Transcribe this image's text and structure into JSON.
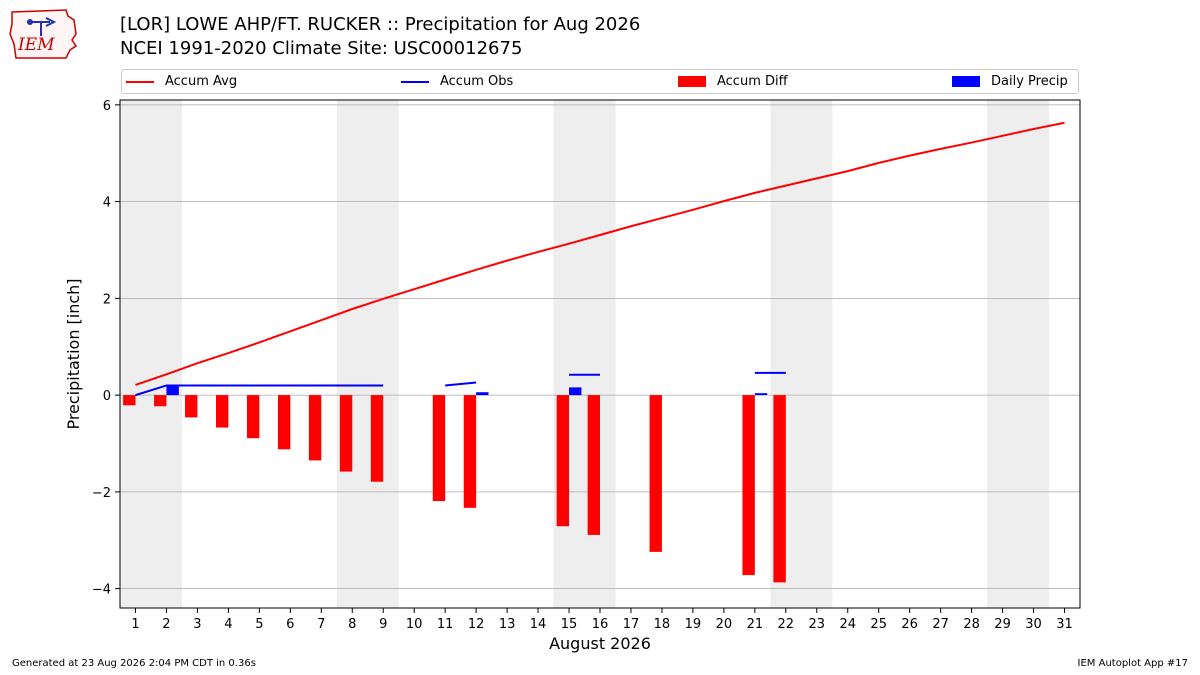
{
  "title_line1": "[LOR] LOWE AHP/FT. RUCKER :: Precipitation for Aug 2026",
  "title_line2": "NCEI 1991-2020 Climate Site: USC00012675",
  "logo_text": "IEM",
  "footer_left": "Generated at 23 Aug 2026 2:04 PM CDT in 0.36s",
  "footer_right": "IEM Autoplot App #17",
  "colors": {
    "avg": "#ff0000",
    "obs": "#0000ff",
    "diff": "#ff0000",
    "daily": "#0000ff",
    "weekend": "#eeeeee",
    "grid": "#aaaaaa"
  },
  "chart_data": {
    "type": "bar",
    "xlabel": "August 2026",
    "ylabel": "Precipitation [inch]",
    "xlim": [
      0.5,
      31.5
    ],
    "ylim": [
      -4.4,
      6.1
    ],
    "x_ticks": [
      1,
      2,
      3,
      4,
      5,
      6,
      7,
      8,
      9,
      10,
      11,
      12,
      13,
      14,
      15,
      16,
      17,
      18,
      19,
      20,
      21,
      22,
      23,
      24,
      25,
      26,
      27,
      28,
      29,
      30,
      31
    ],
    "x_tick_labels": [
      "1",
      "2",
      "3",
      "4",
      "5",
      "6",
      "7",
      "8",
      "9",
      "10",
      "11",
      "12",
      "13",
      "14",
      "15",
      "16",
      "17",
      "18",
      "19",
      "20",
      "21",
      "22",
      "23",
      "24",
      "25",
      "26",
      "27",
      "28",
      "29",
      "30",
      "31"
    ],
    "y_ticks": [
      -4,
      -2,
      0,
      2,
      4,
      6
    ],
    "y_tick_labels": [
      "−4",
      "−2",
      "0",
      "2",
      "4",
      "6"
    ],
    "grid": "horizontal",
    "weekend_shading": [
      [
        0.5,
        2.5
      ],
      [
        7.5,
        9.5
      ],
      [
        14.5,
        16.5
      ],
      [
        21.5,
        23.5
      ],
      [
        28.5,
        30.5
      ]
    ],
    "legend": {
      "placement": "top",
      "entries": [
        {
          "name": "Accum Avg",
          "kind": "line",
          "color": "#ff0000"
        },
        {
          "name": "Accum Obs",
          "kind": "line",
          "color": "#0000ff"
        },
        {
          "name": "Accum Diff",
          "kind": "bar",
          "color": "#ff0000"
        },
        {
          "name": "Daily Precip",
          "kind": "bar",
          "color": "#0000ff"
        }
      ]
    },
    "series": [
      {
        "name": "Accum Avg",
        "type": "line",
        "x": [
          1,
          2,
          3,
          4,
          5,
          6,
          7,
          8,
          9,
          10,
          11,
          12,
          13,
          14,
          15,
          16,
          17,
          18,
          19,
          20,
          21,
          22,
          23,
          24,
          25,
          26,
          27,
          28,
          29,
          30,
          31
        ],
        "values": [
          0.21,
          0.43,
          0.66,
          0.87,
          1.09,
          1.32,
          1.55,
          1.78,
          1.99,
          2.19,
          2.39,
          2.59,
          2.78,
          2.96,
          3.13,
          3.31,
          3.49,
          3.66,
          3.83,
          4.01,
          4.18,
          4.33,
          4.48,
          4.63,
          4.8,
          4.95,
          5.09,
          5.22,
          5.36,
          5.5,
          5.63
        ]
      },
      {
        "name": "Accum Obs",
        "type": "line",
        "segments": [
          {
            "x": [
              1,
              2,
              3,
              4,
              5,
              6,
              7,
              8,
              9
            ],
            "values": [
              0.0,
              0.2,
              0.2,
              0.2,
              0.2,
              0.2,
              0.2,
              0.2,
              0.2
            ]
          },
          {
            "x": [
              11,
              12
            ],
            "values": [
              0.2,
              0.26
            ]
          },
          {
            "x": [
              15,
              16
            ],
            "values": [
              0.42,
              0.42
            ]
          },
          {
            "x": [
              21,
              22
            ],
            "values": [
              0.46,
              0.46
            ]
          }
        ]
      },
      {
        "name": "Accum Diff",
        "type": "bar",
        "x": [
          1,
          2,
          3,
          4,
          5,
          6,
          7,
          8,
          9,
          11,
          12,
          15,
          16,
          18,
          21,
          22
        ],
        "values": [
          -0.21,
          -0.23,
          -0.46,
          -0.67,
          -0.89,
          -1.12,
          -1.35,
          -1.58,
          -1.79,
          -2.19,
          -2.33,
          -2.71,
          -2.89,
          -3.24,
          -3.72,
          -3.87
        ]
      },
      {
        "name": "Daily Precip",
        "type": "bar",
        "x": [
          2,
          12,
          15,
          21
        ],
        "values": [
          0.2,
          0.06,
          0.16,
          0.04
        ]
      }
    ]
  }
}
